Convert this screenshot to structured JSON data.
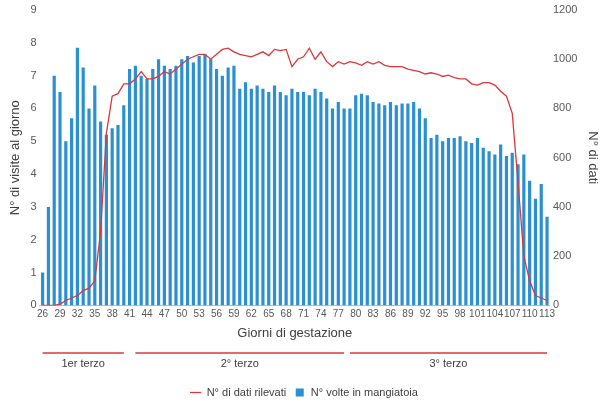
{
  "chart_data": {
    "type": "bar",
    "xlabel": "Giorni di gestazione",
    "ylabel": "N° di visite al giorno",
    "y2label": "N° di dati",
    "x": [
      26,
      27,
      28,
      29,
      30,
      31,
      32,
      33,
      34,
      35,
      36,
      37,
      38,
      39,
      40,
      41,
      42,
      43,
      44,
      45,
      46,
      47,
      48,
      49,
      50,
      51,
      52,
      53,
      54,
      55,
      56,
      57,
      58,
      59,
      60,
      61,
      62,
      63,
      64,
      65,
      66,
      67,
      68,
      69,
      70,
      71,
      72,
      73,
      74,
      75,
      76,
      77,
      78,
      79,
      80,
      81,
      82,
      83,
      84,
      85,
      86,
      87,
      88,
      89,
      90,
      91,
      92,
      93,
      94,
      95,
      96,
      97,
      98,
      99,
      100,
      101,
      102,
      103,
      104,
      105,
      106,
      107,
      108,
      109,
      110,
      111,
      112,
      113
    ],
    "series": [
      {
        "name": "N° volte in mangiatoia",
        "color": "#2b8fd3",
        "type": "bar",
        "values": [
          1.0,
          3.0,
          7.0,
          6.5,
          5.0,
          5.7,
          7.85,
          7.25,
          6.0,
          6.7,
          5.6,
          5.2,
          5.4,
          5.5,
          6.1,
          7.2,
          7.3,
          7.0,
          6.9,
          7.2,
          7.5,
          7.3,
          7.2,
          7.3,
          7.5,
          7.6,
          7.4,
          7.6,
          7.65,
          7.5,
          7.2,
          7.0,
          7.25,
          7.3,
          6.6,
          6.8,
          6.6,
          6.7,
          6.6,
          6.5,
          6.7,
          6.5,
          6.4,
          6.6,
          6.5,
          6.5,
          6.4,
          6.6,
          6.5,
          6.3,
          6.0,
          6.2,
          6.0,
          6.0,
          6.4,
          6.45,
          6.4,
          6.2,
          6.15,
          6.1,
          6.2,
          6.1,
          6.15,
          6.15,
          6.2,
          6.0,
          5.7,
          5.1,
          5.2,
          5.0,
          5.1,
          5.1,
          5.15,
          5.0,
          4.95,
          5.1,
          4.8,
          4.7,
          4.6,
          4.9,
          4.55,
          4.65,
          4.3,
          4.6,
          3.8,
          3.25,
          3.7,
          2.7
        ]
      },
      {
        "name": "N° di dati rilevati",
        "color": "#d9383a",
        "type": "line",
        "axis": "y2",
        "values": [
          0,
          0,
          0,
          5,
          20,
          30,
          40,
          60,
          70,
          100,
          300,
          700,
          850,
          860,
          900,
          900,
          920,
          950,
          920,
          920,
          930,
          950,
          940,
          960,
          980,
          1000,
          1010,
          1020,
          1020,
          1000,
          1020,
          1040,
          1045,
          1030,
          1020,
          1015,
          1010,
          1020,
          1030,
          1015,
          1040,
          1035,
          1040,
          970,
          1000,
          1010,
          1045,
          1000,
          1030,
          990,
          970,
          990,
          980,
          990,
          985,
          975,
          990,
          980,
          990,
          975,
          970,
          970,
          970,
          960,
          955,
          950,
          940,
          945,
          940,
          930,
          935,
          925,
          920,
          920,
          900,
          895,
          905,
          905,
          895,
          870,
          850,
          780,
          500,
          200,
          100,
          40,
          30,
          20
        ]
      }
    ],
    "xlim": [
      25.5,
      113.5
    ],
    "xticks": [
      26,
      29,
      32,
      35,
      38,
      41,
      44,
      47,
      50,
      53,
      56,
      59,
      62,
      65,
      68,
      71,
      74,
      77,
      80,
      83,
      86,
      89,
      92,
      95,
      98,
      101,
      104,
      107,
      110,
      113
    ],
    "ylim": [
      0,
      9
    ],
    "yticks": [
      0,
      1,
      2,
      3,
      4,
      5,
      6,
      7,
      8,
      9
    ],
    "y2lim": [
      0,
      1200
    ],
    "y2ticks": [
      0,
      200,
      400,
      600,
      800,
      1000,
      1200
    ],
    "grid": false,
    "legend": "bottom",
    "annotations": [
      {
        "text": "1er terzo",
        "from": 26,
        "to": 40
      },
      {
        "text": "2° terzo",
        "from": 42,
        "to": 78
      },
      {
        "text": "3° terzo",
        "from": 79,
        "to": 113
      }
    ]
  }
}
